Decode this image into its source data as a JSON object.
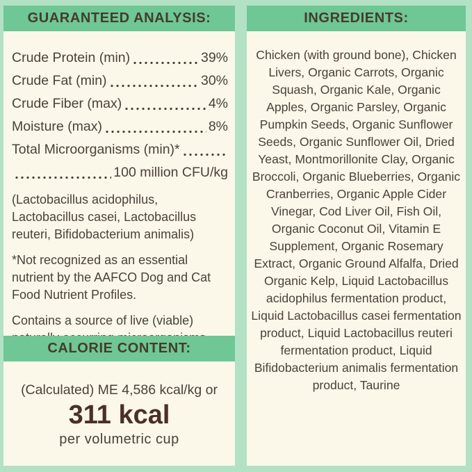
{
  "colors": {
    "background_mint": "#b3e1c4",
    "panel_cream": "#fbf7e9",
    "header_green": "#6ec795",
    "body_text": "#4b4239",
    "header_text": "#453b2e",
    "kcal_brown": "#4a3029"
  },
  "left_panel": {
    "header": "GUARANTEED ANALYSIS:",
    "analysis_rows": [
      {
        "label": "Crude Protein (min)",
        "value": "39%"
      },
      {
        "label": "Crude Fat (min)",
        "value": "30%"
      },
      {
        "label": "Crude Fiber (max)",
        "value": "4%"
      },
      {
        "label": "Moisture (max)",
        "value": "8%"
      },
      {
        "label": "Total Microorganisms (min)*",
        "value": ""
      },
      {
        "label": "",
        "value": "100 million CFU/kg"
      }
    ],
    "notes": [
      "(Lactobacillus acidophilus, Lactobacillus casei, Lactobacillus reuteri, Bifidobacterium animalis)",
      "*Not recognized as an essential nutrient by the AAFCO Dog and Cat Food Nutrient Profiles.",
      "Contains a source of live (viable) naturally occurring microorganisms"
    ],
    "calorie": {
      "header": "CALORIE CONTENT:",
      "line1": "(Calculated) ME 4,586 kcal/kg or",
      "value": "311 kcal",
      "line3": "per volumetric cup"
    }
  },
  "right_panel": {
    "header": "INGREDIENTS:",
    "ingredients": "Chicken (with ground bone), Chicken Livers, Organic Carrots, Organic Squash, Organic Kale, Organic Apples, Organic Parsley, Organic Pumpkin Seeds, Organic Sunflower Seeds, Organic Sunflower Oil, Dried Yeast, Montmorillonite Clay, Organic Broccoli, Organic Blueberries, Organic Cranberries, Organic Apple Cider Vinegar, Cod Liver Oil, Fish Oil, Organic Coconut Oil, Vitamin E Supplement, Organic Rosemary Extract, Organic Ground Alfalfa, Dried Organic Kelp, Liquid Lactobacillus acidophilus fermentation product, Liquid Lactobacillus casei fermentation product, Liquid Lactobacillus reuteri fermentation product, Liquid Bifidobacterium animalis fermentation product, Taurine"
  }
}
